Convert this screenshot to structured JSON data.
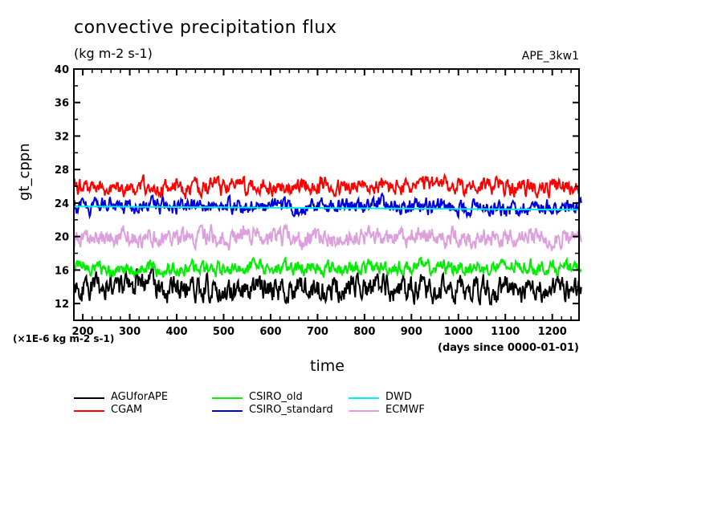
{
  "chart_data": {
    "type": "line",
    "title": "convective precipitation flux",
    "units": "(kg m-2 s-1)",
    "run_label": "APE_3kw1",
    "ylabel": "gt_cppn",
    "yscale_note": "(×1E-6 kg m-2 s-1)",
    "xlabel": "time",
    "xunits": "(days since 0000-01-01)",
    "xlim": [
      181,
      1257
    ],
    "ylim": [
      10,
      40
    ],
    "xticks": [
      200,
      300,
      400,
      500,
      600,
      700,
      800,
      900,
      1000,
      1100,
      1200
    ],
    "xtick_labels": [
      "200",
      "300",
      "400",
      "500",
      "600",
      "700",
      "800",
      "900",
      "1000",
      "1100",
      "1200"
    ],
    "yticks": [
      12,
      16,
      20,
      24,
      28,
      32,
      36,
      40
    ],
    "ytick_labels": [
      "12",
      "16",
      "20",
      "24",
      "28",
      "32",
      "36",
      "40"
    ],
    "grid": false,
    "legend_position": "bottom",
    "series": [
      {
        "name": "AGUforAPE",
        "color": "#000000",
        "mean": 13.9,
        "amplitude": 1.6,
        "min": 11.8,
        "max": 16.8,
        "x_end": 1262
      },
      {
        "name": "CGAM",
        "color": "#ff0000",
        "mean": 25.9,
        "amplitude": 1.1,
        "min": 24.3,
        "max": 28.5,
        "x_end": 1257
      },
      {
        "name": "CSIRO_old",
        "color": "#00ee00",
        "mean": 16.3,
        "amplitude": 0.9,
        "min": 14.8,
        "max": 18.4,
        "x_end": 1262
      },
      {
        "name": "CSIRO_standard",
        "color": "#0000dd",
        "mean": 23.6,
        "amplitude": 1.0,
        "min": 21.5,
        "max": 26.0,
        "x_end": 1262
      },
      {
        "name": "DWD",
        "color": "#00eeee",
        "mean": 23.5,
        "start": 23.6,
        "end": 23.2,
        "amplitude": 0.0,
        "x_end": 1257
      },
      {
        "name": "ECMWF",
        "color": "#dda0dd",
        "mean": 19.9,
        "amplitude": 1.2,
        "min": 17.5,
        "max": 22.5,
        "x_end": 1262
      }
    ]
  },
  "legend": {
    "items": [
      {
        "label": "AGUforAPE",
        "color": "#000000"
      },
      {
        "label": "CGAM",
        "color": "#ff0000"
      },
      {
        "label": "CSIRO_old",
        "color": "#00ee00"
      },
      {
        "label": "CSIRO_standard",
        "color": "#0000dd"
      },
      {
        "label": "DWD",
        "color": "#00eeee"
      },
      {
        "label": "ECMWF",
        "color": "#dda0dd"
      }
    ]
  }
}
